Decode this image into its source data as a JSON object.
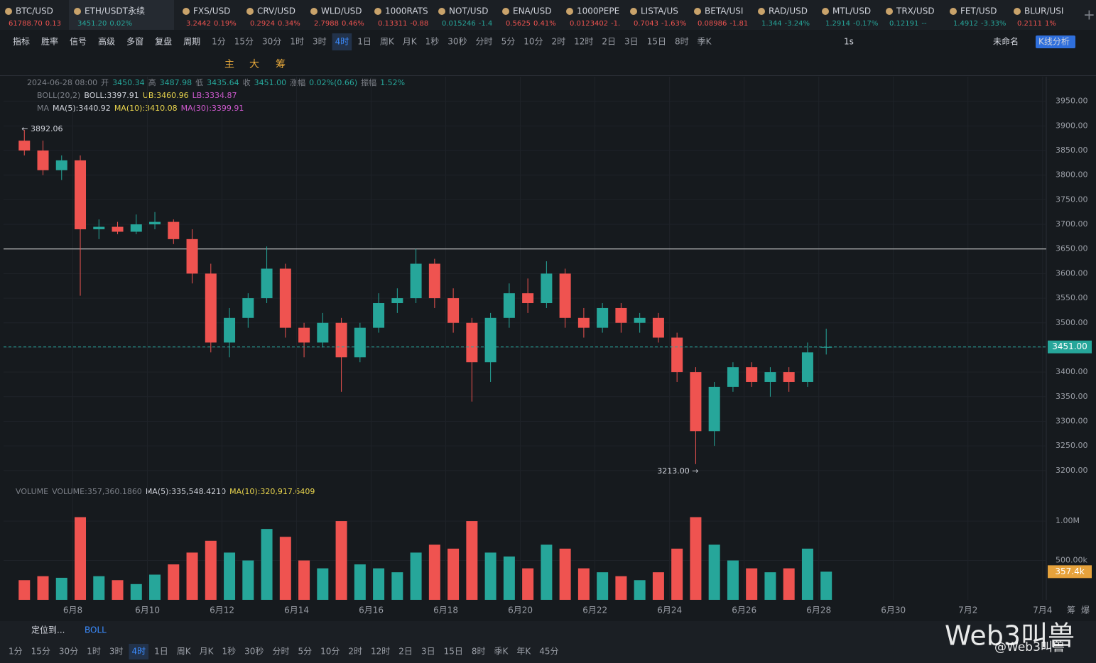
{
  "tabs": [
    {
      "name": "BTC/USD",
      "price": "61788.70",
      "change": "0.13",
      "color": "#ef5350"
    },
    {
      "name": "ETH/USDT永续",
      "price": "3451.20",
      "change": "0.02%",
      "color": "#26a69a"
    },
    {
      "name": "FXS/USD",
      "price": "3.2442",
      "change": "0.19%",
      "color": "#ef5350"
    },
    {
      "name": "CRV/USD",
      "price": "0.2924",
      "change": "0.34%",
      "color": "#ef5350"
    },
    {
      "name": "WLD/USD",
      "price": "2.7988",
      "change": "0.46%",
      "color": "#ef5350"
    },
    {
      "name": "1000RATS",
      "price": "0.13311",
      "change": "-0.88",
      "color": "#ef5350"
    },
    {
      "name": "NOT/USD",
      "price": "0.015246",
      "change": "-1.4",
      "color": "#26a69a"
    },
    {
      "name": "ENA/USD",
      "price": "0.5625",
      "change": "0.41%",
      "color": "#ef5350"
    },
    {
      "name": "1000PEPE",
      "price": "0.0123402",
      "change": "-1.",
      "color": "#ef5350"
    },
    {
      "name": "LISTA/US",
      "price": "0.7043",
      "change": "-1.63%",
      "color": "#ef5350"
    },
    {
      "name": "BETA/USI",
      "price": "0.08986",
      "change": "-1.81",
      "color": "#ef5350"
    },
    {
      "name": "RAD/USD",
      "price": "1.344",
      "change": "-3.24%",
      "color": "#26a69a"
    },
    {
      "name": "MTL/USD",
      "price": "1.2914",
      "change": "-0.17%",
      "color": "#26a69a"
    },
    {
      "name": "TRX/USD",
      "price": "0.12191",
      "change": "--",
      "color": "#26a69a"
    },
    {
      "name": "FET/USD",
      "price": "1.4912",
      "change": "-3.33%",
      "color": "#26a69a"
    },
    {
      "name": "BLUR/USI",
      "price": "0.2111",
      "change": "1%",
      "color": "#ef5350"
    }
  ],
  "toolbar": {
    "items": [
      "指标",
      "胜率",
      "信号",
      "高级",
      "多窗",
      "复盘",
      "周期",
      "1分",
      "15分",
      "30分",
      "1时",
      "3时",
      "4时",
      "1日",
      "周K",
      "月K",
      "1秒",
      "30秒",
      "分时",
      "5分",
      "10分",
      "2时",
      "12时",
      "2日",
      "3日",
      "15日",
      "8时",
      "季K"
    ],
    "active": 12,
    "right": [
      "1s",
      "未命名",
      "K线分析"
    ]
  },
  "tools": [
    "主",
    "大",
    "筹"
  ],
  "info": {
    "ohlc": [
      {
        "text": "2024-06-28 08:00",
        "color": "#7c8088"
      },
      {
        "text": "开",
        "color": "#7c8088"
      },
      {
        "text": "3450.34",
        "color": "#26a69a"
      },
      {
        "text": "高",
        "color": "#7c8088"
      },
      {
        "text": "3487.98",
        "color": "#26a69a"
      },
      {
        "text": "低",
        "color": "#7c8088"
      },
      {
        "text": "3435.64",
        "color": "#26a69a"
      },
      {
        "text": "收",
        "color": "#7c8088"
      },
      {
        "text": "3451.00",
        "color": "#26a69a"
      },
      {
        "text": "涨幅",
        "color": "#7c8088"
      },
      {
        "text": "0.02%(0.66)",
        "color": "#26a69a"
      },
      {
        "text": "振幅",
        "color": "#7c8088"
      },
      {
        "text": "1.52%",
        "color": "#26a69a"
      }
    ],
    "boll": [
      {
        "text": "BOLL(20,2)",
        "color": "#7c8088"
      },
      {
        "text": "BOLL:3397.91",
        "color": "#d1d4dc"
      },
      {
        "text": "UB:3460.96",
        "color": "#e8d44d"
      },
      {
        "text": "LB:3334.87",
        "color": "#d05ad0"
      }
    ],
    "ma": [
      {
        "text": "MA",
        "color": "#7c8088"
      },
      {
        "text": "MA(5):3440.92",
        "color": "#d1d4dc"
      },
      {
        "text": "MA(10):3410.08",
        "color": "#e8d44d"
      },
      {
        "text": "MA(30):3399.91",
        "color": "#d05ad0"
      }
    ],
    "volume": [
      {
        "text": "VOLUME",
        "color": "#7c8088"
      },
      {
        "text": "VOLUME:357,360.1860",
        "color": "#7c8088"
      },
      {
        "text": "MA(5):335,548.4210",
        "color": "#d1d4dc"
      },
      {
        "text": "MA(10):320,917.6409",
        "color": "#e8d44d"
      }
    ]
  },
  "chart_data": {
    "type": "candlestick",
    "x": [
      6.7,
      7.2,
      7.7,
      8.2,
      8.7,
      9.2,
      9.7,
      10.2,
      10.7,
      11.2,
      11.7,
      12.2,
      12.7,
      13.2,
      13.7,
      14.2,
      14.7,
      15.2,
      15.7,
      16.2,
      16.7,
      17.2,
      17.7,
      18.2,
      18.7,
      19.2,
      19.7,
      20.2,
      20.7,
      21.2,
      21.7,
      22.2,
      22.7,
      23.2,
      23.7,
      24.2,
      24.7,
      25.2,
      25.7,
      26.2,
      26.7,
      27.2,
      27.7,
      28.2
    ],
    "open": [
      3870,
      3850,
      3810,
      3830,
      3690,
      3695,
      3685,
      3700,
      3705,
      3670,
      3600,
      3460,
      3510,
      3550,
      3610,
      3490,
      3460,
      3500,
      3430,
      3490,
      3540,
      3550,
      3620,
      3550,
      3500,
      3420,
      3510,
      3560,
      3540,
      3600,
      3510,
      3490,
      3530,
      3500,
      3510,
      3470,
      3400,
      3280,
      3370,
      3410,
      3380,
      3400,
      3380,
      3450.34
    ],
    "high": [
      3892.06,
      3870,
      3840,
      3840,
      3710,
      3705,
      3720,
      3725,
      3710,
      3690,
      3620,
      3530,
      3560,
      3655,
      3620,
      3500,
      3520,
      3510,
      3500,
      3560,
      3570,
      3650,
      3630,
      3570,
      3510,
      3520,
      3580,
      3590,
      3625,
      3610,
      3530,
      3540,
      3540,
      3520,
      3520,
      3480,
      3410,
      3380,
      3420,
      3420,
      3410,
      3410,
      3460,
      3487.98
    ],
    "low": [
      3840,
      3800,
      3790,
      3555,
      3670,
      3680,
      3680,
      3690,
      3660,
      3580,
      3440,
      3430,
      3490,
      3540,
      3470,
      3430,
      3450,
      3360,
      3420,
      3480,
      3520,
      3540,
      3530,
      3480,
      3340,
      3380,
      3490,
      3520,
      3530,
      3490,
      3470,
      3480,
      3480,
      3480,
      3460,
      3380,
      3213,
      3250,
      3360,
      3370,
      3350,
      3360,
      3370,
      3435.64
    ],
    "close": [
      3850,
      3810,
      3830,
      3690,
      3695,
      3685,
      3700,
      3705,
      3670,
      3600,
      3460,
      3510,
      3550,
      3610,
      3490,
      3460,
      3500,
      3430,
      3490,
      3540,
      3550,
      3620,
      3550,
      3500,
      3420,
      3510,
      3560,
      3540,
      3600,
      3510,
      3490,
      3530,
      3500,
      3510,
      3470,
      3400,
      3280,
      3370,
      3410,
      3380,
      3400,
      3380,
      3440,
      3451
    ],
    "volume": [
      250000,
      300000,
      280000,
      1050000,
      300000,
      250000,
      200000,
      320000,
      450000,
      600000,
      750000,
      600000,
      500000,
      900000,
      800000,
      500000,
      400000,
      1000000,
      450000,
      400000,
      350000,
      600000,
      700000,
      650000,
      1000000,
      600000,
      550000,
      400000,
      700000,
      650000,
      400000,
      350000,
      300000,
      250000,
      350000,
      650000,
      1050000,
      700000,
      500000,
      400000,
      350000,
      400000,
      650000,
      357360
    ],
    "up_color": "#26a69a",
    "down_color": "#ef5350",
    "xlim": [
      6.2,
      34.1
    ],
    "xticks": [
      {
        "value": 8,
        "label": "6月8"
      },
      {
        "value": 10,
        "label": "6月10"
      },
      {
        "value": 12,
        "label": "6月12"
      },
      {
        "value": 14,
        "label": "6月14"
      },
      {
        "value": 16,
        "label": "6月16"
      },
      {
        "value": 18,
        "label": "6月18"
      },
      {
        "value": 20,
        "label": "6月20"
      },
      {
        "value": 22,
        "label": "6月22"
      },
      {
        "value": 24,
        "label": "6月24"
      },
      {
        "value": 26,
        "label": "6月26"
      },
      {
        "value": 28,
        "label": "6月28"
      },
      {
        "value": 30,
        "label": "6月30"
      },
      {
        "value": 32,
        "label": "7月2"
      },
      {
        "value": 34,
        "label": "7月4"
      }
    ],
    "ylim": [
      3168,
      4000
    ],
    "yticks": [
      {
        "value": 3200,
        "label": "3200.00"
      },
      {
        "value": 3250,
        "label": "3250.00"
      },
      {
        "value": 3300,
        "label": "3300.00"
      },
      {
        "value": 3350,
        "label": "3350.00"
      },
      {
        "value": 3400,
        "label": "3400.00"
      },
      {
        "value": 3450,
        "label": "3450.00"
      },
      {
        "value": 3500,
        "label": "3500.00"
      },
      {
        "value": 3550,
        "label": "3550.00"
      },
      {
        "value": 3600,
        "label": "3600.00"
      },
      {
        "value": 3650,
        "label": "3650.00"
      },
      {
        "value": 3700,
        "label": "3700.00"
      },
      {
        "value": 3750,
        "label": "3750.00"
      },
      {
        "value": 3800,
        "label": "3800.00"
      },
      {
        "value": 3850,
        "label": "3850.00"
      },
      {
        "value": 3900,
        "label": "3900.00"
      },
      {
        "value": 3950,
        "label": "3950.00"
      }
    ],
    "volume_ylim": [
      0,
      1280000
    ],
    "volume_yticks": [
      {
        "value": 500000,
        "label": "500.00k"
      },
      {
        "value": 1000000,
        "label": "1.00M"
      }
    ],
    "hline": 3650,
    "last_label": "3451.00",
    "volume_label": "357.4k",
    "high_annotation": "← 3892.06",
    "low_annotation": "3213.00 →",
    "edge": [
      "筹",
      "爆"
    ]
  },
  "bottom": {
    "locate": "定位到...",
    "indicator": "BOLL",
    "periods": [
      "1分",
      "15分",
      "30分",
      "1时",
      "3时",
      "4时",
      "1日",
      "周K",
      "月K",
      "1秒",
      "30秒",
      "分时",
      "5分",
      "10分",
      "2时",
      "12时",
      "2日",
      "3日",
      "15日",
      "8时",
      "季K",
      "年K",
      "45分"
    ],
    "active": 5
  },
  "watermark": {
    "title": "Web3叫兽",
    "handle": "@Web3叫兽"
  }
}
